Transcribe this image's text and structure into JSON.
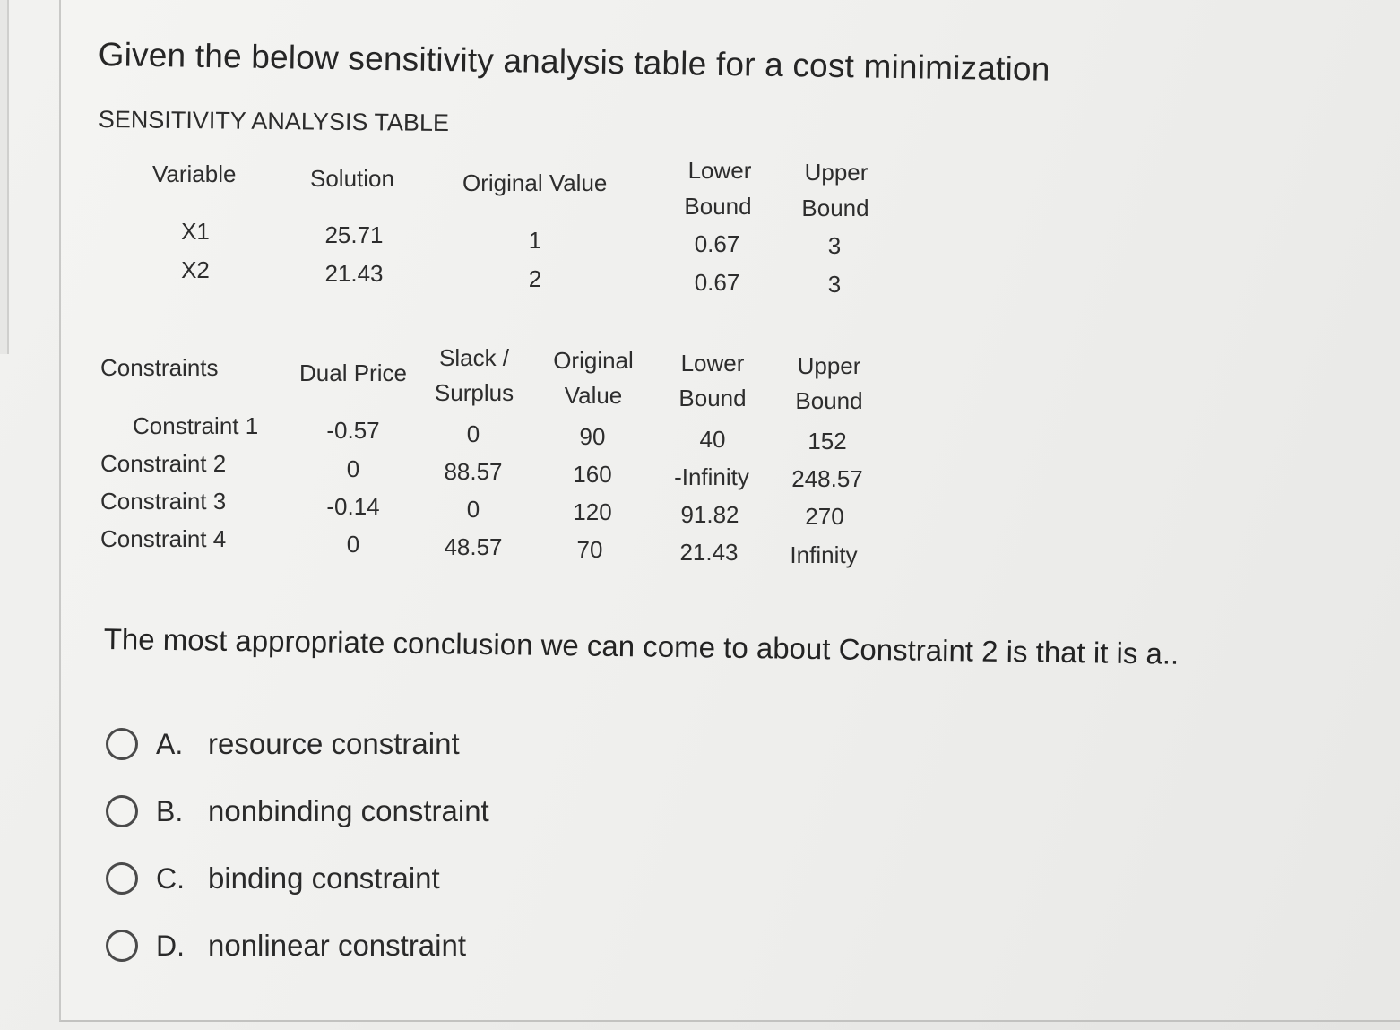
{
  "question": {
    "title": "Given the below sensitivity analysis table for a cost minimization",
    "table_heading": "SENSITIVITY ANALYSIS TABLE",
    "stem": "The most appropriate conclusion we can come to about Constraint 2 is that it is a.."
  },
  "variables_table": {
    "headers": {
      "variable": "Variable",
      "solution": "Solution",
      "original_value": "Original Value",
      "lower_bound_1": "Lower",
      "lower_bound_2": "Bound",
      "upper_bound_1": "Upper",
      "upper_bound_2": "Bound"
    },
    "rows": [
      {
        "variable": "X1",
        "solution": "25.71",
        "original_value": "1",
        "lower_bound": "0.67",
        "upper_bound": "3"
      },
      {
        "variable": "X2",
        "solution": "21.43",
        "original_value": "2",
        "lower_bound": "0.67",
        "upper_bound": "3"
      }
    ]
  },
  "constraints_table": {
    "headers": {
      "constraints": "Constraints",
      "dual_price": "Dual Price",
      "slack_1": "Slack /",
      "slack_2": "Surplus",
      "original_1": "Original",
      "original_2": "Value",
      "lower_1": "Lower",
      "lower_2": "Bound",
      "upper_1": "Upper",
      "upper_2": "Bound"
    },
    "rows": [
      {
        "name": "Constraint 1",
        "dual_price": "-0.57",
        "slack": "0",
        "original_value": "90",
        "lower_bound": "40",
        "upper_bound": "152"
      },
      {
        "name": "Constraint 2",
        "dual_price": "0",
        "slack": "88.57",
        "original_value": "160",
        "lower_bound": "-Infinity",
        "upper_bound": "248.57"
      },
      {
        "name": "Constraint 3",
        "dual_price": "-0.14",
        "slack": "0",
        "original_value": "120",
        "lower_bound": "91.82",
        "upper_bound": "270"
      },
      {
        "name": "Constraint 4",
        "dual_price": "0",
        "slack": "48.57",
        "original_value": "70",
        "lower_bound": "21.43",
        "upper_bound": "Infinity"
      }
    ]
  },
  "options": [
    {
      "letter": "A.",
      "text": "resource constraint"
    },
    {
      "letter": "B.",
      "text": "nonbinding constraint"
    },
    {
      "letter": "C.",
      "text": "binding constraint"
    },
    {
      "letter": "D.",
      "text": "nonlinear constraint"
    }
  ]
}
